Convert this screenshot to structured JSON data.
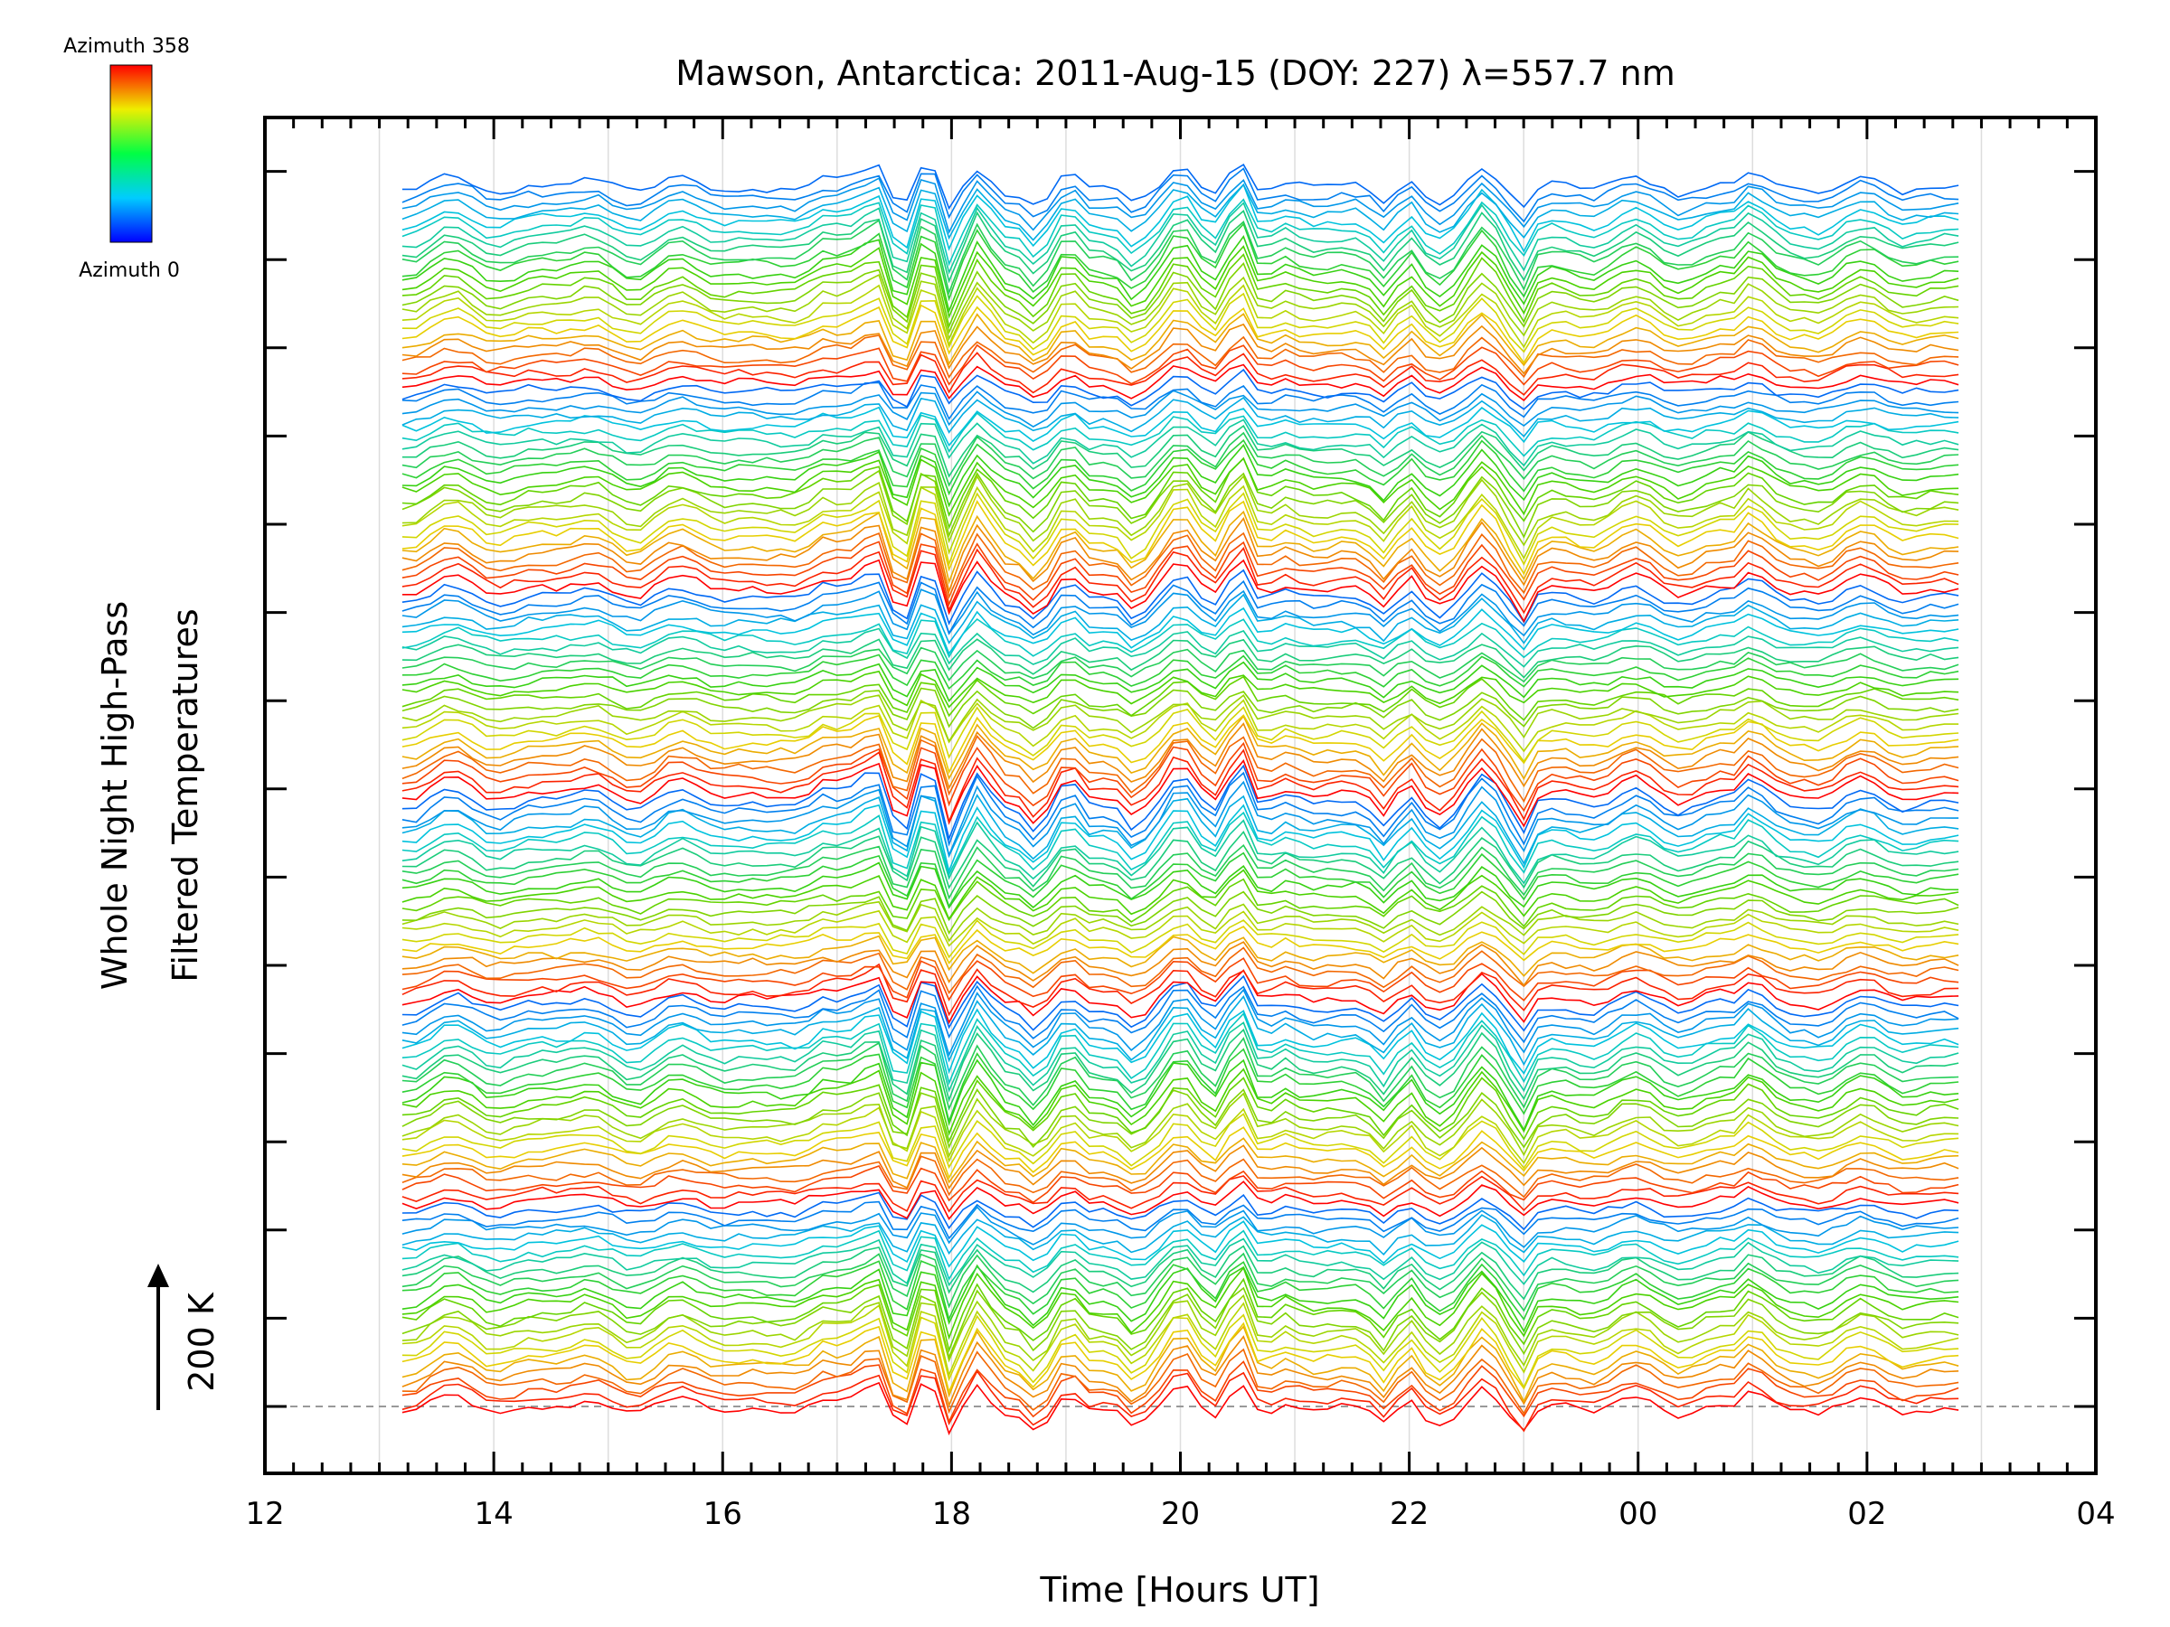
{
  "chart_data": {
    "type": "line",
    "title": "Mawson, Antarctica: 2011-Aug-15 (DOY: 227) λ=557.7 nm",
    "xlabel": "Time [Hours UT]",
    "ylabel_lines": [
      "Whole Night High-Pass",
      "Filtered Temperatures"
    ],
    "x_range": [
      12,
      28
    ],
    "x_tick_labels": [
      "12",
      "14",
      "16",
      "18",
      "20",
      "22",
      "00",
      "02",
      "04"
    ],
    "x_time_range": [
      13.2,
      26.8
    ],
    "scale_bar": {
      "label": "200 K",
      "value_K": 200
    },
    "legend": {
      "top_label": "Azimuth 358",
      "bottom_label": "Azimuth 0",
      "colormap": "rainbow",
      "azimuth_range": [
        0,
        358
      ]
    },
    "series_count": 144,
    "grid": true,
    "colors": {
      "blue": "#0033ff",
      "cyan": "#00c8c8",
      "green": "#33cc00",
      "yellow": "#e6e600",
      "red": "#ff0000"
    }
  }
}
